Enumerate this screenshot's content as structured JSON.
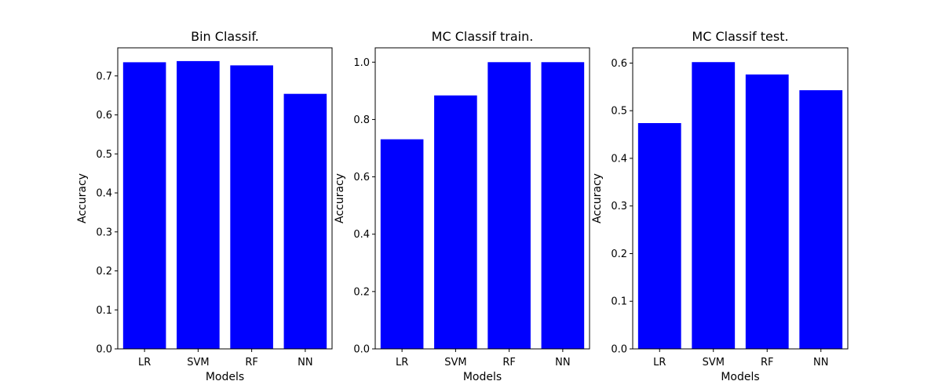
{
  "chart_data": [
    {
      "type": "bar",
      "title": "Bin Classif.",
      "xlabel": "Models",
      "ylabel": "Accuracy",
      "categories": [
        "LR",
        "SVM",
        "RF",
        "NN"
      ],
      "values": [
        0.735,
        0.738,
        0.727,
        0.654
      ],
      "ylim": [
        0,
        0.772
      ],
      "yticks": [
        0.0,
        0.1,
        0.2,
        0.3,
        0.4,
        0.5,
        0.6,
        0.7
      ],
      "ytick_labels": [
        "0.0",
        "0.1",
        "0.2",
        "0.3",
        "0.4",
        "0.5",
        "0.6",
        "0.7"
      ],
      "bar_color": "#0000ff",
      "grid": false
    },
    {
      "type": "bar",
      "title": "MC Classif train.",
      "xlabel": "Models",
      "ylabel": "Accuracy",
      "categories": [
        "LR",
        "SVM",
        "RF",
        "NN"
      ],
      "values": [
        0.731,
        0.884,
        1.0,
        1.0
      ],
      "ylim": [
        0,
        1.05
      ],
      "yticks": [
        0.0,
        0.2,
        0.4,
        0.6,
        0.8,
        1.0
      ],
      "ytick_labels": [
        "0.0",
        "0.2",
        "0.4",
        "0.6",
        "0.8",
        "1.0"
      ],
      "bar_color": "#0000ff",
      "grid": false
    },
    {
      "type": "bar",
      "title": "MC Classif test.",
      "xlabel": "Models",
      "ylabel": "Accuracy",
      "categories": [
        "LR",
        "SVM",
        "RF",
        "NN"
      ],
      "values": [
        0.474,
        0.602,
        0.576,
        0.543
      ],
      "ylim": [
        0,
        0.632
      ],
      "yticks": [
        0.0,
        0.1,
        0.2,
        0.3,
        0.4,
        0.5,
        0.6
      ],
      "ytick_labels": [
        "0.0",
        "0.1",
        "0.2",
        "0.3",
        "0.4",
        "0.5",
        "0.6"
      ],
      "bar_color": "#0000ff",
      "grid": false
    }
  ]
}
